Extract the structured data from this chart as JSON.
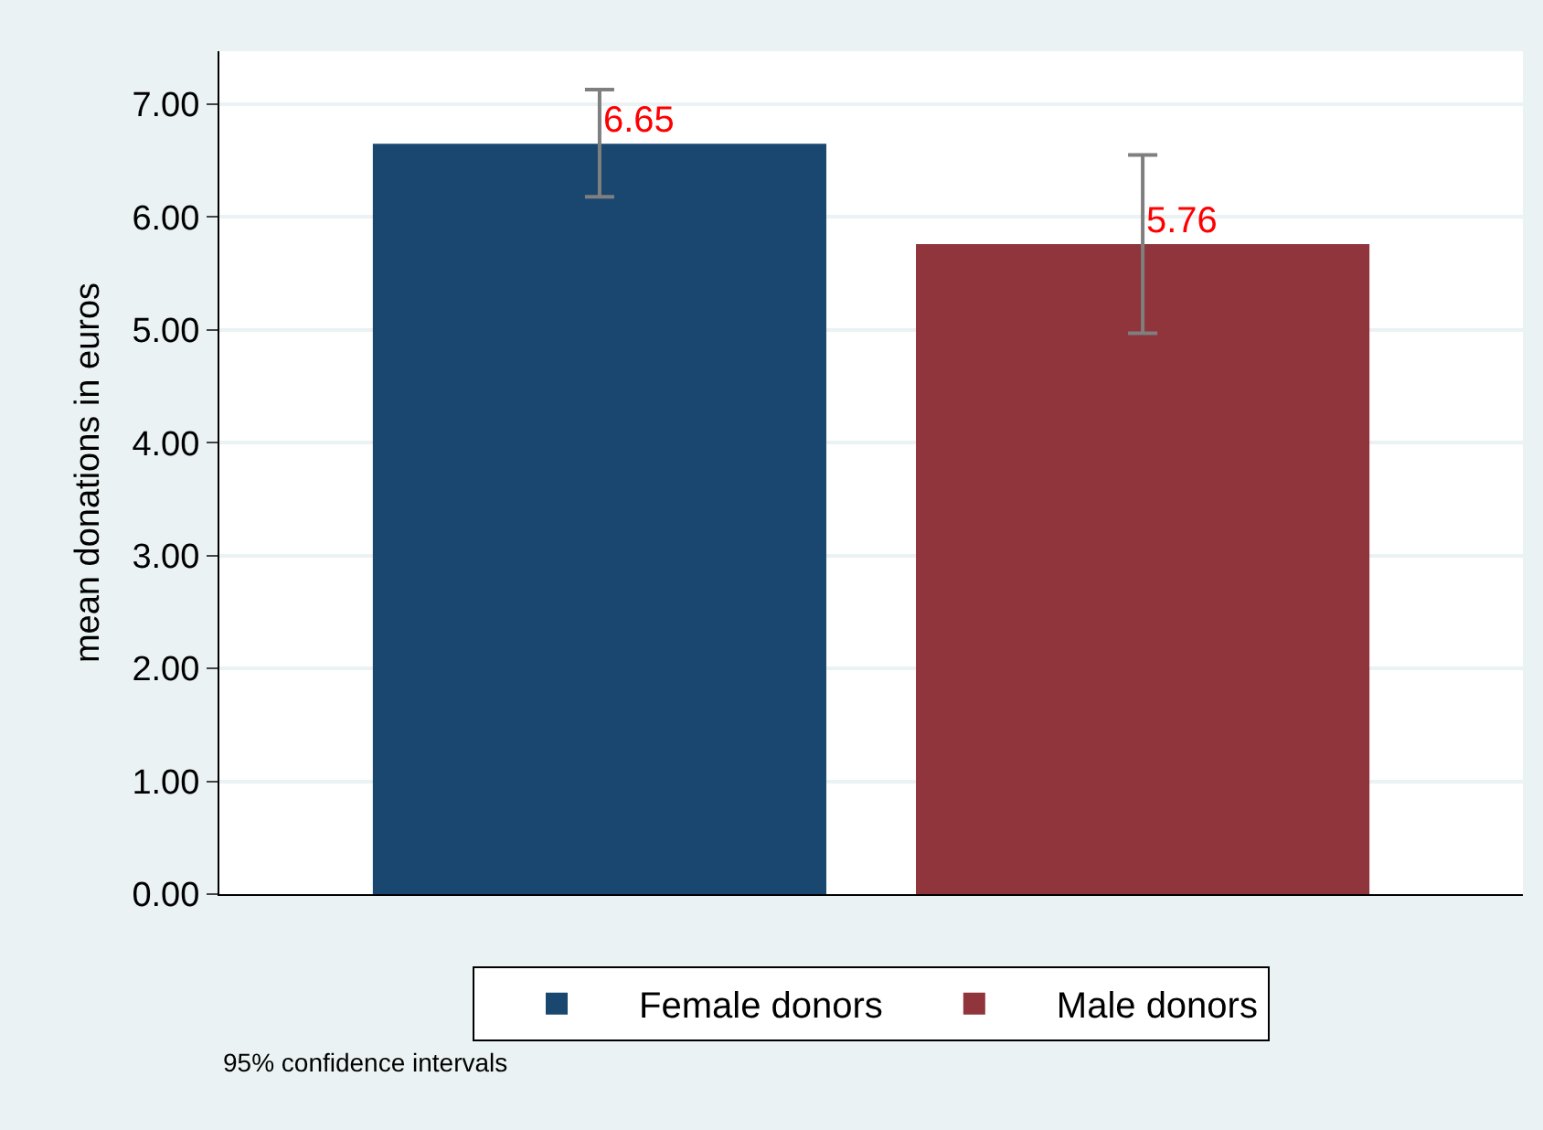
{
  "chart_data": {
    "type": "bar",
    "ylabel": "mean donations in euros",
    "categories": [
      null,
      null
    ],
    "series": [
      {
        "name": "Female donors",
        "color": "#1a476f",
        "values": [
          6.65,
          null
        ],
        "errors": [
          [
            6.18,
            7.13
          ],
          null
        ]
      },
      {
        "name": "Male donors",
        "color": "#90353b",
        "values": [
          null,
          5.76
        ],
        "errors": [
          null,
          [
            4.97,
            6.55
          ]
        ]
      }
    ],
    "ylim": [
      0,
      7.47
    ],
    "yticks": [
      {
        "value": 0,
        "label": "0.00"
      },
      {
        "value": 1,
        "label": "1.00"
      },
      {
        "value": 2,
        "label": "2.00"
      },
      {
        "value": 3,
        "label": "3.00"
      },
      {
        "value": 4,
        "label": "4.00"
      },
      {
        "value": 5,
        "label": "5.00"
      },
      {
        "value": 6,
        "label": "6.00"
      },
      {
        "value": 7,
        "label": "7.00"
      }
    ],
    "data_labels": true,
    "grid": "y",
    "legend": "bottom",
    "annotations": [
      "95% confidence intervals"
    ]
  }
}
